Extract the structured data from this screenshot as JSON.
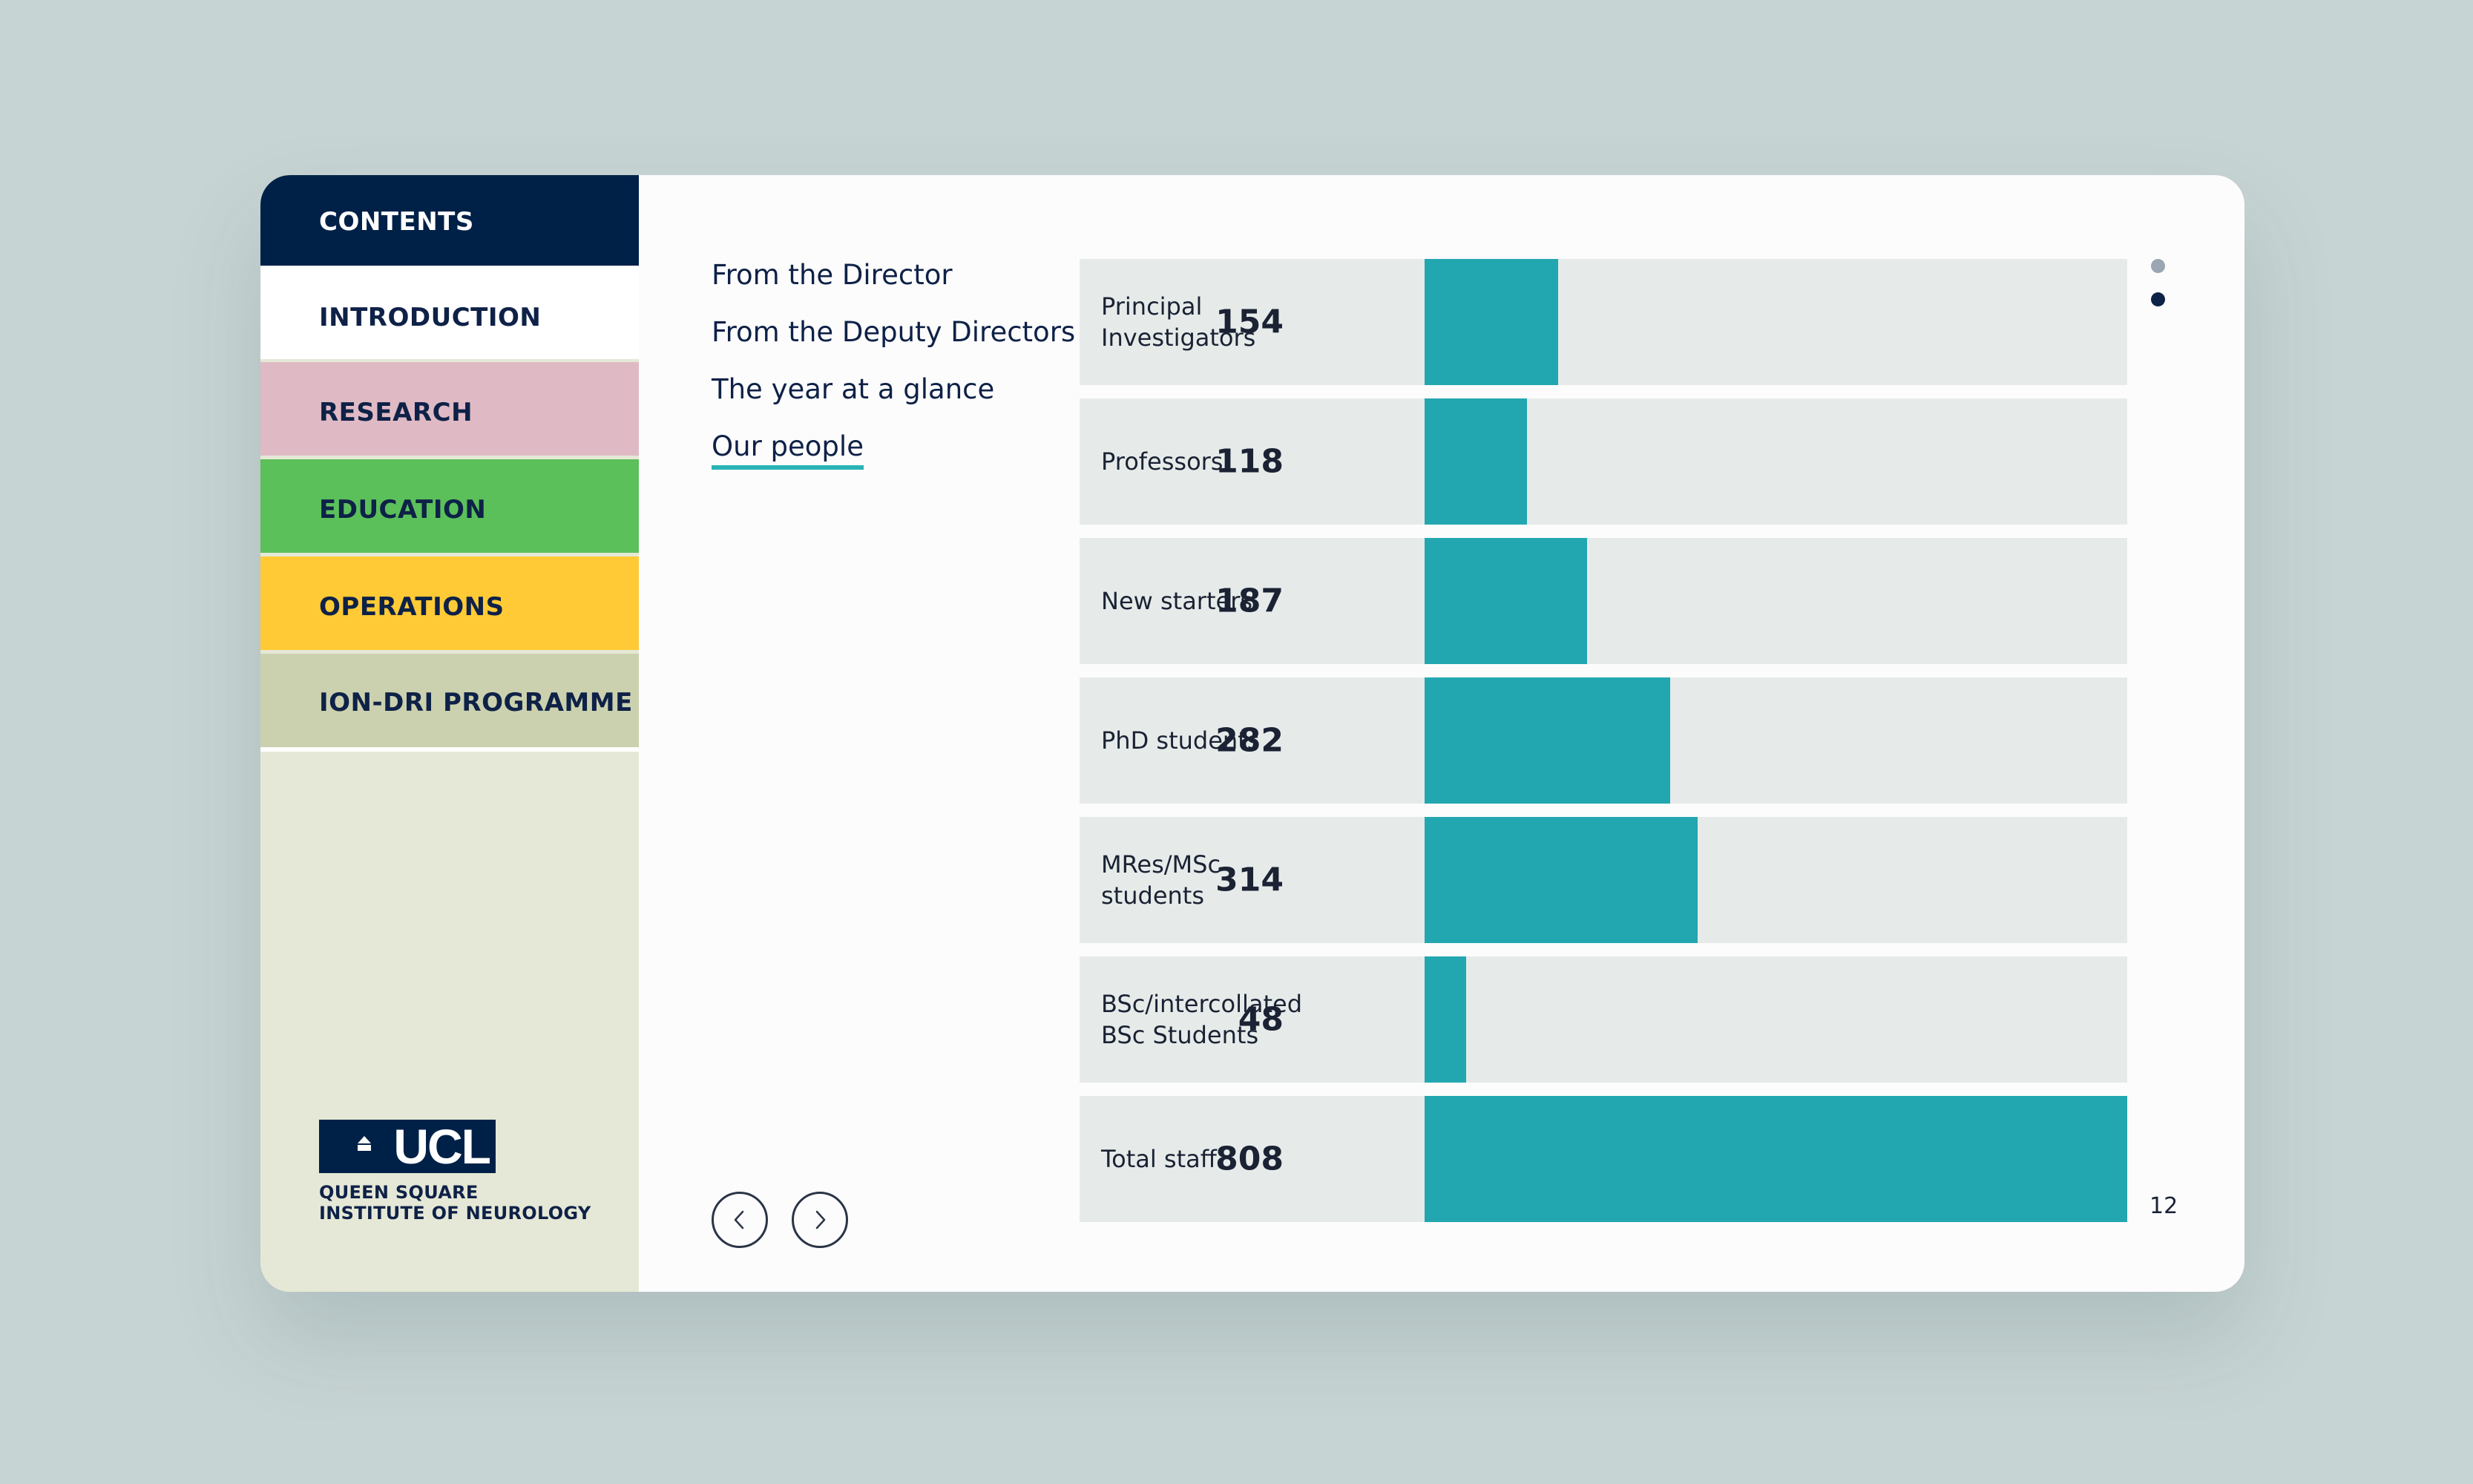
{
  "sidebar": {
    "items": [
      {
        "label": "CONTENTS",
        "color": "#002147"
      },
      {
        "label": "INTRODUCTION",
        "color": "#ffffff"
      },
      {
        "label": "RESEARCH",
        "color": "#dfbac5"
      },
      {
        "label": "EDUCATION",
        "color": "#5bc05a"
      },
      {
        "label": "OPERATIONS",
        "color": "#ffca36"
      },
      {
        "label": "ION-DRI PROGRAMME",
        "color": "#cbd1ae"
      }
    ],
    "logo": {
      "mark": "UCL",
      "line1": "QUEEN SQUARE",
      "line2": "INSTITUTE OF NEUROLOGY"
    }
  },
  "subnav": {
    "items": [
      {
        "label": "From the Director"
      },
      {
        "label": "From the Deputy Directors"
      },
      {
        "label": "The year at a glance"
      },
      {
        "label": "Our people",
        "active": true
      }
    ]
  },
  "pager": {
    "prev_icon": "chevron-left-icon",
    "next_icon": "chevron-right-icon",
    "page_number": "12",
    "dots": [
      {
        "active": false
      },
      {
        "active": true
      }
    ]
  },
  "chart_data": {
    "type": "bar",
    "orientation": "horizontal",
    "categories": [
      "Principal Investigators",
      "Professors",
      "New starters",
      "PhD students",
      "MRes/MSc students",
      "BSc/intercollated BSc Students",
      "Total staff"
    ],
    "values": [
      154,
      118,
      187,
      282,
      314,
      48,
      808
    ],
    "xlim": [
      0,
      808
    ],
    "bar_color": "#22a7b0",
    "track_color": "#e6ebea",
    "grid": false,
    "legend": false
  },
  "chart_rows": [
    {
      "line1": "Principal",
      "line2": "Investigators",
      "value": "154"
    },
    {
      "line1": "Professors",
      "line2": "",
      "value": "118"
    },
    {
      "line1": "New starters",
      "line2": "",
      "value": "187"
    },
    {
      "line1": "PhD students",
      "line2": "",
      "value": "282"
    },
    {
      "line1": "MRes/MSc",
      "line2": "students",
      "value": "314"
    },
    {
      "line1": "BSc/intercollated",
      "line2": "BSc Students",
      "value": "48"
    },
    {
      "line1": "Total staff",
      "line2": "",
      "value": "808"
    }
  ]
}
